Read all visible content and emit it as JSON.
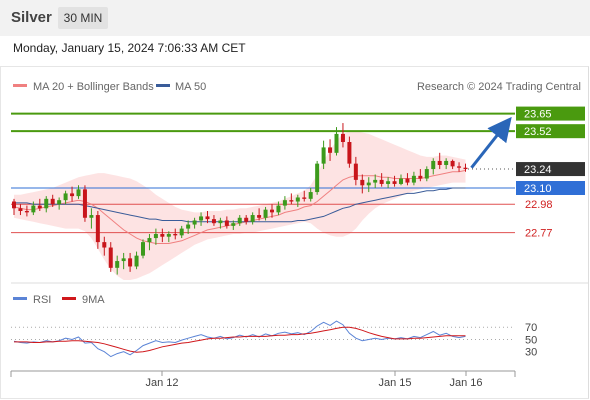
{
  "header": {
    "symbol": "Silver",
    "timeframe": "30 MIN",
    "timestamp": "Monday, January 15, 2024 7:06:33 AM CET"
  },
  "legend": {
    "ma20_label": "MA 20 + Bollinger Bands",
    "ma50_label": "MA 50",
    "credit": "Research © 2024 Trading Central",
    "rsi_label": "RSI",
    "rsi_ma_label": "9MA"
  },
  "colors": {
    "up": "#3c9a1c",
    "down": "#c8151b",
    "ma20": "#f08080",
    "ma50": "#3a5c99",
    "bollinger_fill": "#fde0e0",
    "resistance": "#4a9a0f",
    "pivot": "#2f6fd6",
    "support": "#e05050",
    "arrow": "#2a66b8",
    "last_price_bg": "#333333",
    "rsi": "#5b84d6",
    "rsi_ma": "#d0181c"
  },
  "chart_data": {
    "type": "candlestick",
    "instrument": "Silver",
    "timeframe": "30 MIN",
    "y_range": [
      22.42,
      23.78
    ],
    "x_axis_labels": [
      "Jan 12",
      "Jan 15",
      "Jan 16"
    ],
    "levels": [
      {
        "value": 23.65,
        "label": "23.65",
        "kind": "resistance"
      },
      {
        "value": 23.52,
        "label": "23.52",
        "kind": "resistance"
      },
      {
        "value": 23.24,
        "label": "23.24",
        "kind": "last"
      },
      {
        "value": 23.1,
        "label": "23.10",
        "kind": "pivot"
      },
      {
        "value": 22.98,
        "label": "22.98",
        "kind": "support"
      },
      {
        "value": 22.77,
        "label": "22.77",
        "kind": "support"
      }
    ],
    "forecast_arrow": {
      "from_value": 23.25,
      "to_value": 23.65
    },
    "candles": [
      [
        23.0,
        23.02,
        22.9,
        22.95
      ],
      [
        22.95,
        22.98,
        22.9,
        22.93
      ],
      [
        22.93,
        22.97,
        22.89,
        22.92
      ],
      [
        22.92,
        23.0,
        22.9,
        22.97
      ],
      [
        22.97,
        23.02,
        22.93,
        22.95
      ],
      [
        22.95,
        23.04,
        22.92,
        23.02
      ],
      [
        23.02,
        23.05,
        22.96,
        22.98
      ],
      [
        22.98,
        23.03,
        22.94,
        23.01
      ],
      [
        23.01,
        23.08,
        22.98,
        23.06
      ],
      [
        23.06,
        23.11,
        23.0,
        23.04
      ],
      [
        23.04,
        23.12,
        23.02,
        23.09
      ],
      [
        23.09,
        23.12,
        22.85,
        22.88
      ],
      [
        22.88,
        22.95,
        22.8,
        22.9
      ],
      [
        22.9,
        22.93,
        22.65,
        22.7
      ],
      [
        22.7,
        22.74,
        22.6,
        22.66
      ],
      [
        22.66,
        22.7,
        22.48,
        22.51
      ],
      [
        22.51,
        22.6,
        22.46,
        22.56
      ],
      [
        22.56,
        22.62,
        22.5,
        22.58
      ],
      [
        22.58,
        22.62,
        22.48,
        22.52
      ],
      [
        22.52,
        22.63,
        22.5,
        22.6
      ],
      [
        22.6,
        22.72,
        22.58,
        22.7
      ],
      [
        22.7,
        22.76,
        22.64,
        22.73
      ],
      [
        22.73,
        22.8,
        22.68,
        22.76
      ],
      [
        22.76,
        22.8,
        22.7,
        22.74
      ],
      [
        22.74,
        22.78,
        22.7,
        22.76
      ],
      [
        22.76,
        22.8,
        22.72,
        22.75
      ],
      [
        22.75,
        22.82,
        22.73,
        22.8
      ],
      [
        22.8,
        22.86,
        22.76,
        22.83
      ],
      [
        22.83,
        22.88,
        22.8,
        22.86
      ],
      [
        22.86,
        22.92,
        22.82,
        22.89
      ],
      [
        22.89,
        22.93,
        22.84,
        22.87
      ],
      [
        22.87,
        22.9,
        22.82,
        22.84
      ],
      [
        22.84,
        22.88,
        22.8,
        22.86
      ],
      [
        22.86,
        22.89,
        22.8,
        22.82
      ],
      [
        22.82,
        22.86,
        22.79,
        22.84
      ],
      [
        22.84,
        22.9,
        22.82,
        22.88
      ],
      [
        22.88,
        22.9,
        22.83,
        22.85
      ],
      [
        22.85,
        22.92,
        22.83,
        22.9
      ],
      [
        22.9,
        22.95,
        22.86,
        22.88
      ],
      [
        22.88,
        22.96,
        22.86,
        22.94
      ],
      [
        22.94,
        22.98,
        22.88,
        22.92
      ],
      [
        22.92,
        23.0,
        22.9,
        22.97
      ],
      [
        22.97,
        23.04,
        22.94,
        23.01
      ],
      [
        23.01,
        23.06,
        22.98,
        23.0
      ],
      [
        23.0,
        23.05,
        22.96,
        23.03
      ],
      [
        23.03,
        23.08,
        23.0,
        23.02
      ],
      [
        23.02,
        23.1,
        23.0,
        23.07
      ],
      [
        23.07,
        23.3,
        23.05,
        23.28
      ],
      [
        23.28,
        23.45,
        23.24,
        23.4
      ],
      [
        23.4,
        23.46,
        23.3,
        23.36
      ],
      [
        23.36,
        23.55,
        23.34,
        23.5
      ],
      [
        23.5,
        23.58,
        23.4,
        23.44
      ],
      [
        23.44,
        23.48,
        23.25,
        23.28
      ],
      [
        23.28,
        23.33,
        23.12,
        23.16
      ],
      [
        23.16,
        23.2,
        23.06,
        23.12
      ],
      [
        23.12,
        23.18,
        23.07,
        23.14
      ],
      [
        23.14,
        23.2,
        23.1,
        23.16
      ],
      [
        23.16,
        23.21,
        23.11,
        23.13
      ],
      [
        23.13,
        23.18,
        23.1,
        23.15
      ],
      [
        23.15,
        23.19,
        23.11,
        23.13
      ],
      [
        23.13,
        23.2,
        23.12,
        23.17
      ],
      [
        23.17,
        23.21,
        23.12,
        23.14
      ],
      [
        23.14,
        23.22,
        23.12,
        23.19
      ],
      [
        23.19,
        23.24,
        23.15,
        23.17
      ],
      [
        23.17,
        23.26,
        23.15,
        23.24
      ],
      [
        23.24,
        23.32,
        23.2,
        23.3
      ],
      [
        23.3,
        23.36,
        23.24,
        23.27
      ],
      [
        23.27,
        23.32,
        23.24,
        23.3
      ],
      [
        23.3,
        23.31,
        23.24,
        23.26
      ],
      [
        23.26,
        23.29,
        23.22,
        23.25
      ],
      [
        23.25,
        23.28,
        23.22,
        23.24
      ]
    ],
    "ma20": [
      22.96,
      22.95,
      22.94,
      22.94,
      22.95,
      22.96,
      22.97,
      22.98,
      22.99,
      23.0,
      23.01,
      23.0,
      22.98,
      22.95,
      22.91,
      22.87,
      22.83,
      22.79,
      22.76,
      22.73,
      22.71,
      22.7,
      22.69,
      22.69,
      22.69,
      22.7,
      22.71,
      22.73,
      22.75,
      22.77,
      22.79,
      22.8,
      22.81,
      22.82,
      22.83,
      22.84,
      22.85,
      22.86,
      22.87,
      22.88,
      22.89,
      22.9,
      22.92,
      22.93,
      22.94,
      22.96,
      22.97,
      23.0,
      23.04,
      23.08,
      23.12,
      23.16,
      23.18,
      23.19,
      23.19,
      23.19,
      23.19,
      23.18,
      23.18,
      23.17,
      23.17,
      23.17,
      23.17,
      23.17,
      23.18,
      23.19,
      23.2,
      23.21,
      23.22,
      23.22,
      23.23
    ],
    "ma50": [
      22.99,
      22.99,
      22.99,
      22.98,
      22.98,
      22.98,
      22.98,
      22.98,
      22.98,
      22.98,
      22.98,
      22.97,
      22.96,
      22.95,
      22.94,
      22.93,
      22.92,
      22.91,
      22.9,
      22.89,
      22.88,
      22.87,
      22.87,
      22.86,
      22.86,
      22.86,
      22.86,
      22.85,
      22.85,
      22.85,
      22.85,
      22.85,
      22.85,
      22.85,
      22.85,
      22.85,
      22.85,
      22.85,
      22.85,
      22.85,
      22.85,
      22.85,
      22.85,
      22.85,
      22.86,
      22.86,
      22.87,
      22.88,
      22.89,
      22.91,
      22.93,
      22.95,
      22.96,
      22.98,
      22.99,
      23.0,
      23.01,
      23.02,
      23.03,
      23.04,
      23.05,
      23.06,
      23.06,
      23.07,
      23.08,
      23.08,
      23.09,
      23.09,
      23.1,
      23.1,
      23.1
    ],
    "bollinger_upper": [
      23.05,
      23.05,
      23.06,
      23.07,
      23.08,
      23.09,
      23.1,
      23.12,
      23.14,
      23.16,
      23.18,
      23.19,
      23.2,
      23.21,
      23.21,
      23.2,
      23.19,
      23.18,
      23.17,
      23.15,
      23.12,
      23.09,
      23.05,
      23.02,
      22.99,
      22.96,
      22.94,
      22.93,
      22.92,
      22.92,
      22.93,
      22.93,
      22.93,
      22.94,
      22.94,
      22.95,
      22.95,
      22.96,
      22.97,
      22.98,
      22.99,
      23.0,
      23.02,
      23.04,
      23.06,
      23.08,
      23.12,
      23.2,
      23.3,
      23.38,
      23.45,
      23.5,
      23.52,
      23.52,
      23.51,
      23.5,
      23.48,
      23.46,
      23.44,
      23.42,
      23.4,
      23.38,
      23.36,
      23.34,
      23.33,
      23.33,
      23.34,
      23.34,
      23.33,
      23.32,
      23.31
    ],
    "bollinger_lower": [
      22.88,
      22.87,
      22.86,
      22.85,
      22.84,
      22.83,
      22.82,
      22.81,
      22.8,
      22.8,
      22.8,
      22.78,
      22.73,
      22.65,
      22.57,
      22.5,
      22.45,
      22.42,
      22.42,
      22.43,
      22.45,
      22.47,
      22.5,
      22.53,
      22.56,
      22.59,
      22.62,
      22.65,
      22.68,
      22.7,
      22.72,
      22.73,
      22.74,
      22.75,
      22.76,
      22.76,
      22.77,
      22.77,
      22.78,
      22.79,
      22.8,
      22.81,
      22.82,
      22.83,
      22.84,
      22.85,
      22.84,
      22.8,
      22.77,
      22.75,
      22.74,
      22.74,
      22.76,
      22.8,
      22.86,
      22.91,
      22.95,
      22.98,
      23.0,
      23.02,
      23.04,
      23.06,
      23.08,
      23.09,
      23.1,
      23.11,
      23.12,
      23.13,
      23.14,
      23.14,
      23.14
    ],
    "rsi": {
      "y_range": [
        10,
        85
      ],
      "ticks": [
        70,
        50,
        30
      ],
      "values": [
        47,
        45,
        44,
        46,
        45,
        48,
        46,
        48,
        52,
        50,
        54,
        44,
        45,
        35,
        30,
        22,
        27,
        30,
        25,
        32,
        40,
        44,
        48,
        45,
        46,
        45,
        49,
        52,
        55,
        58,
        54,
        52,
        55,
        51,
        53,
        57,
        54,
        58,
        54,
        59,
        56,
        60,
        62,
        59,
        61,
        58,
        63,
        72,
        78,
        73,
        80,
        74,
        60,
        52,
        48,
        50,
        52,
        50,
        52,
        51,
        53,
        51,
        55,
        53,
        58,
        63,
        57,
        60,
        55,
        53,
        55
      ],
      "ma9": [
        46,
        46,
        46,
        45,
        45,
        46,
        46,
        47,
        47,
        48,
        48,
        47,
        46,
        45,
        43,
        40,
        37,
        34,
        31,
        29,
        30,
        32,
        35,
        38,
        40,
        42,
        44,
        45,
        47,
        49,
        51,
        52,
        52,
        53,
        54,
        54,
        55,
        55,
        55,
        55,
        56,
        57,
        57,
        58,
        58,
        59,
        60,
        62,
        64,
        66,
        68,
        70,
        70,
        68,
        65,
        61,
        58,
        55,
        53,
        51,
        51,
        51,
        52,
        52,
        53,
        54,
        55,
        56,
        56,
        56,
        56
      ]
    }
  }
}
